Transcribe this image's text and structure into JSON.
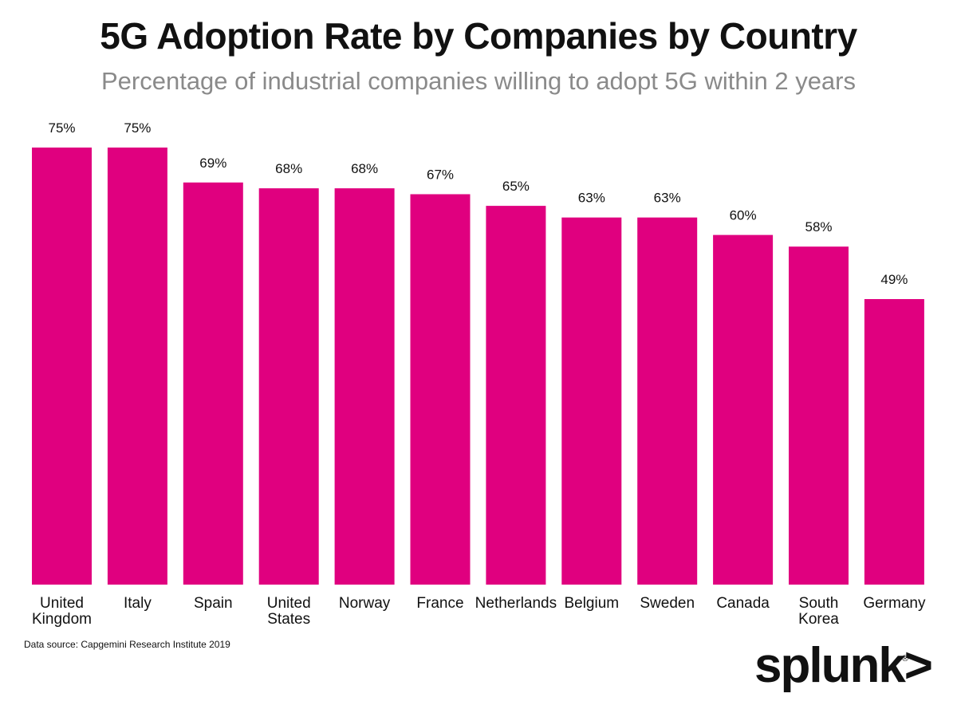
{
  "chart_data": {
    "type": "bar",
    "title": "5G Adoption Rate by Companies by Country",
    "subtitle": "Percentage of industrial companies willing to adopt 5G within 2 years",
    "categories": [
      [
        "United",
        "Kingdom"
      ],
      [
        "Italy"
      ],
      [
        "Spain"
      ],
      [
        "United",
        "States"
      ],
      [
        "Norway"
      ],
      [
        "France"
      ],
      [
        "Netherlands"
      ],
      [
        "Belgium"
      ],
      [
        "Sweden"
      ],
      [
        "Canada"
      ],
      [
        "South",
        "Korea"
      ],
      [
        "Germany"
      ]
    ],
    "values": [
      75,
      75,
      69,
      68,
      68,
      67,
      65,
      63,
      63,
      60,
      58,
      49
    ],
    "value_labels": [
      "75%",
      "75%",
      "69%",
      "68%",
      "68%",
      "67%",
      "65%",
      "63%",
      "63%",
      "60%",
      "58%",
      "49%"
    ],
    "ylim": [
      0,
      75
    ],
    "grid": false,
    "bar_color": "#e0007f"
  },
  "source": "Data source: Capgemini Research Institute 2019",
  "brand": {
    "logo_text": "splunk>",
    "mark": "®"
  }
}
